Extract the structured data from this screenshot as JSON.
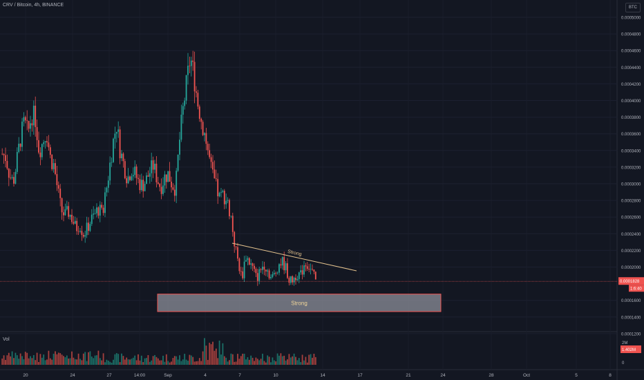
{
  "header": {
    "title": "CRV / Bitcoin, 4h, BINANCE",
    "currency": "BTC"
  },
  "chart_data": {
    "type": "candlestick",
    "symbol": "CRV / Bitcoin",
    "interval": "4h",
    "exchange": "BINANCE",
    "price_axis": {
      "ticks": [
        "0.0005000",
        "0.0004800",
        "0.0004600",
        "0.0004400",
        "0.0004200",
        "0.0004000",
        "0.0003800",
        "0.0003600",
        "0.0003400",
        "0.0003200",
        "0.0003000",
        "0.0002800",
        "0.0002600",
        "0.0002400",
        "0.0002200",
        "0.0002000",
        "0.0001600",
        "0.0001400",
        "0.0001200"
      ],
      "range": [
        0.000118,
        0.000505
      ]
    },
    "time_axis": {
      "ticks": [
        "20",
        "24",
        "27",
        "14:00",
        "Sep",
        "4",
        "7",
        "10",
        "14",
        "17",
        "21",
        "24",
        "28",
        "Oct",
        "5",
        "8"
      ]
    },
    "last_price": "0.0001828",
    "countdown": "1:6:40",
    "volume": {
      "label": "Vol",
      "ticks": [
        "2M",
        "1M",
        "0"
      ],
      "last_value": "1.402M"
    },
    "price_path": [
      0.000336,
      0.000332,
      0.00031,
      0.000302,
      0.000328,
      0.000356,
      0.000374,
      0.00036,
      0.000384,
      0.000378,
      0.00034,
      0.00035,
      0.000364,
      0.000332,
      0.000322,
      0.000294,
      0.000268,
      0.000262,
      0.000266,
      0.000258,
      0.000246,
      0.000252,
      0.00024,
      0.000246,
      0.000256,
      0.000262,
      0.00027,
      0.000264,
      0.000286,
      0.000316,
      0.000348,
      0.000372,
      0.00034,
      0.000322,
      0.000306,
      0.000318,
      0.000312,
      0.000302,
      0.000298,
      0.000304,
      0.000314,
      0.000322,
      0.000306,
      0.000296,
      0.000308,
      0.000312,
      0.0003,
      0.000294,
      0.000348,
      0.000388,
      0.00042,
      0.000452,
      0.00043,
      0.000398,
      0.000378,
      0.000358,
      0.000334,
      0.00031,
      0.000296,
      0.000282,
      0.000288,
      0.000278,
      0.000262,
      0.000228,
      0.000206,
      0.000186,
      0.000214,
      0.000206,
      0.000198,
      0.000186,
      0.000196,
      0.000204,
      0.000196,
      0.000186,
      0.000192,
      0.000204,
      0.000206,
      0.000198,
      0.000182,
      0.000186,
      0.000192,
      0.00019,
      0.000206,
      0.000202,
      0.000194,
      0.000183
    ],
    "annotations": [
      {
        "type": "trendline",
        "label": "Strong"
      },
      {
        "type": "box",
        "label": "Strong",
        "price_range": [
          0.0001465,
          0.0001675
        ]
      }
    ]
  }
}
